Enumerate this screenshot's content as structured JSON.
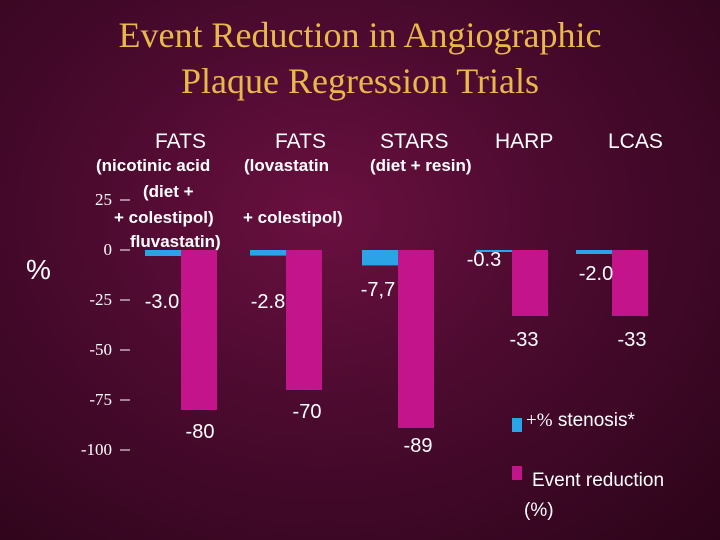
{
  "title_line1": "Event Reduction in Angiographic",
  "title_line2": "Plaque Regression Trials",
  "headers": [
    "FATS",
    "FATS",
    "STARS",
    "HARP",
    "LCAS"
  ],
  "subtitles": {
    "s1": "(nicotinic acid",
    "s2": "(lovastatin",
    "s3": "(diet + resin)",
    "s4": "(diet +",
    "s5": "+ colestipol)",
    "s6": "+ colestipol)",
    "s7": "fluvastatin)"
  },
  "y_unit": "%",
  "legend": {
    "stenosis_plus": "+%",
    "stenosis_text": " stenosis*",
    "event_text": "Event reduction",
    "event_unit": "(%)"
  },
  "colors": {
    "stenosis": "#2aa4e6",
    "event": "#c4148c",
    "title": "#e8b84a",
    "text": "#ffffff"
  },
  "chart_data": {
    "type": "bar",
    "categories": [
      "FATS (nicotinic acid + colestipol)",
      "FATS (lovastatin + colestipol)",
      "STARS (diet + resin)",
      "HARP (diet + fluvastatin)",
      "LCAS"
    ],
    "series": [
      {
        "name": "% stenosis*",
        "values": [
          -3.0,
          -2.8,
          -7.7,
          -0.3,
          -2.0
        ],
        "labels": [
          "-3.0",
          "-2.8",
          "-7,7",
          "-0.3",
          "-2.0"
        ]
      },
      {
        "name": "Event reduction (%)",
        "values": [
          -80,
          -70,
          -89,
          -33,
          -33
        ],
        "labels": [
          "-80",
          "-70",
          "-89",
          "-33",
          "-33"
        ]
      }
    ],
    "ylim": [
      -100,
      25
    ],
    "yticks": [
      25,
      0,
      -25,
      -50,
      -75,
      -100
    ],
    "ytick_labels": [
      "25",
      "0",
      "-25",
      "-50",
      "-75",
      "-100"
    ]
  }
}
